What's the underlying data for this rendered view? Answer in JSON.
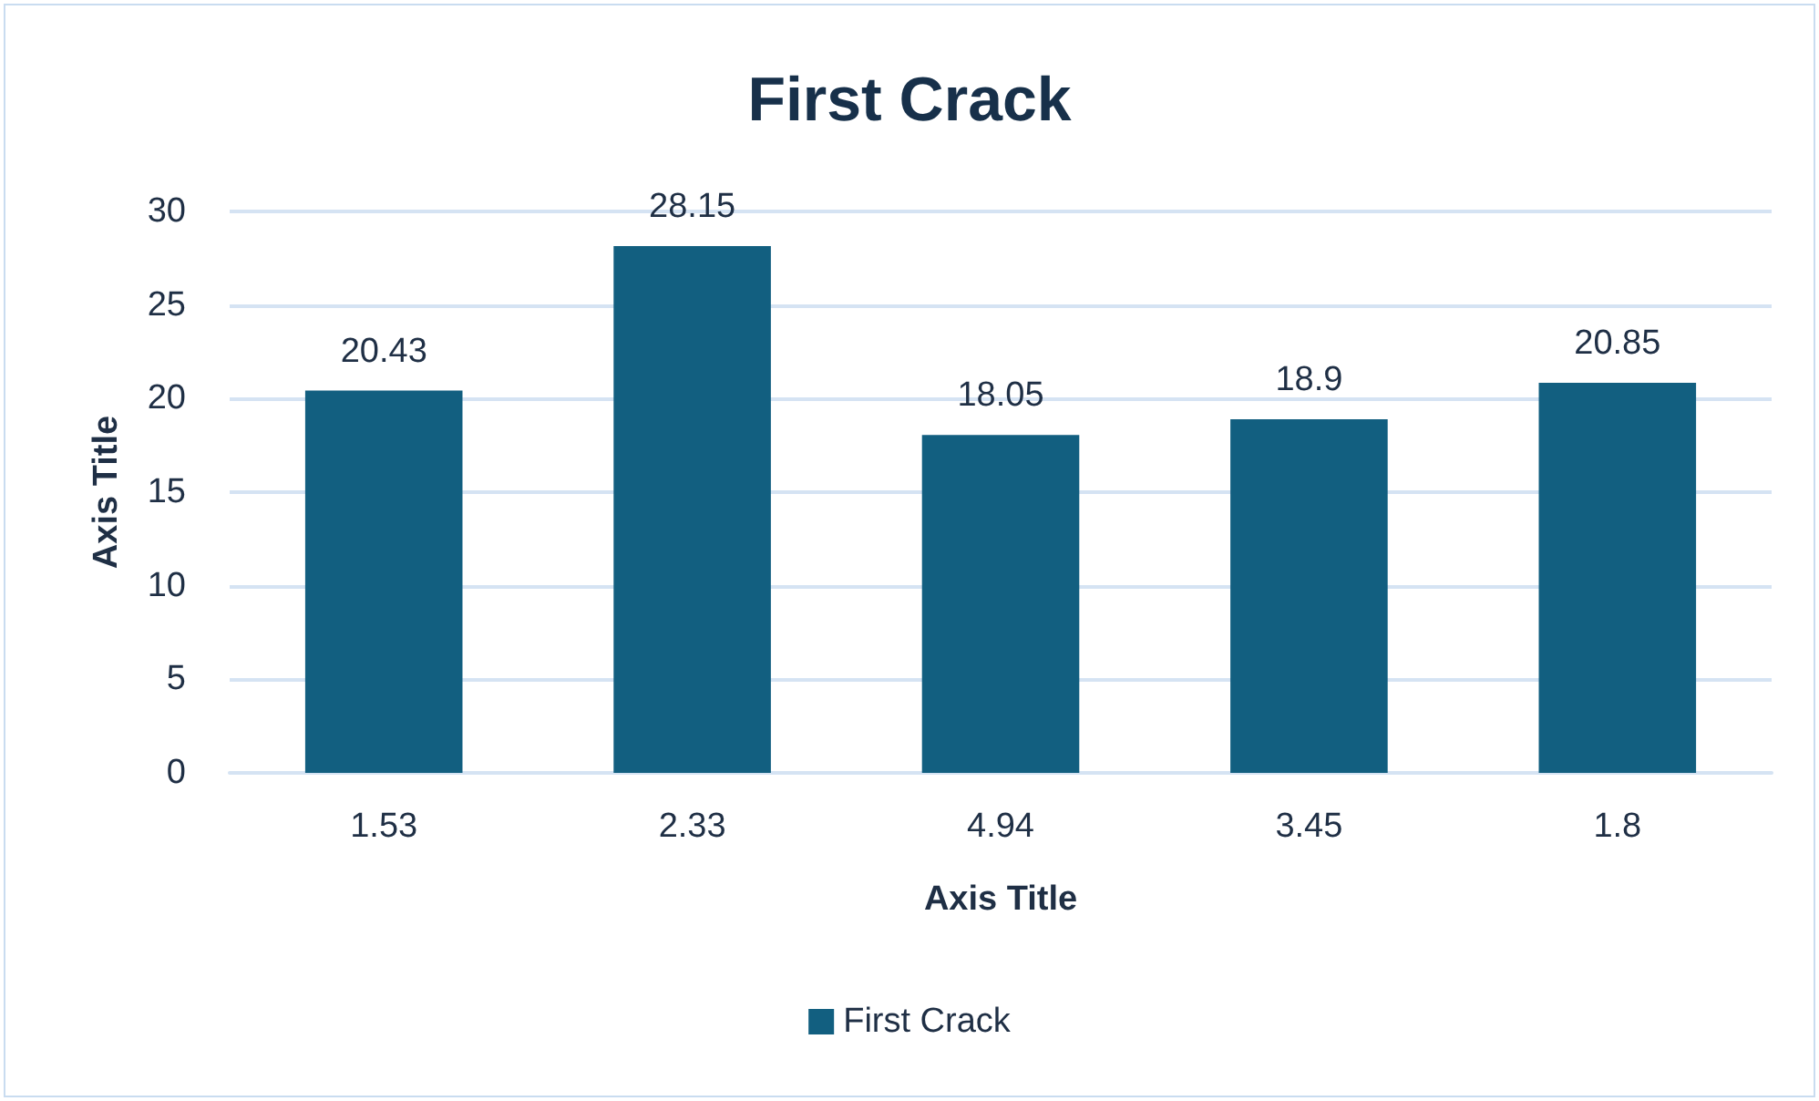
{
  "chart_data": {
    "type": "bar",
    "title": "First Crack",
    "xlabel": "Axis Title",
    "ylabel": "Axis Title",
    "categories": [
      "1.53",
      "2.33",
      "4.94",
      "3.45",
      "1.8"
    ],
    "series": [
      {
        "name": "First Crack",
        "color": "#125f80",
        "values": [
          20.43,
          28.15,
          18.05,
          18.9,
          20.85
        ]
      }
    ],
    "ylim": [
      0,
      30
    ],
    "yticks": [
      0,
      5,
      10,
      15,
      20,
      25,
      30
    ],
    "grid": "y",
    "legend": "bottom",
    "data_labels": true
  }
}
